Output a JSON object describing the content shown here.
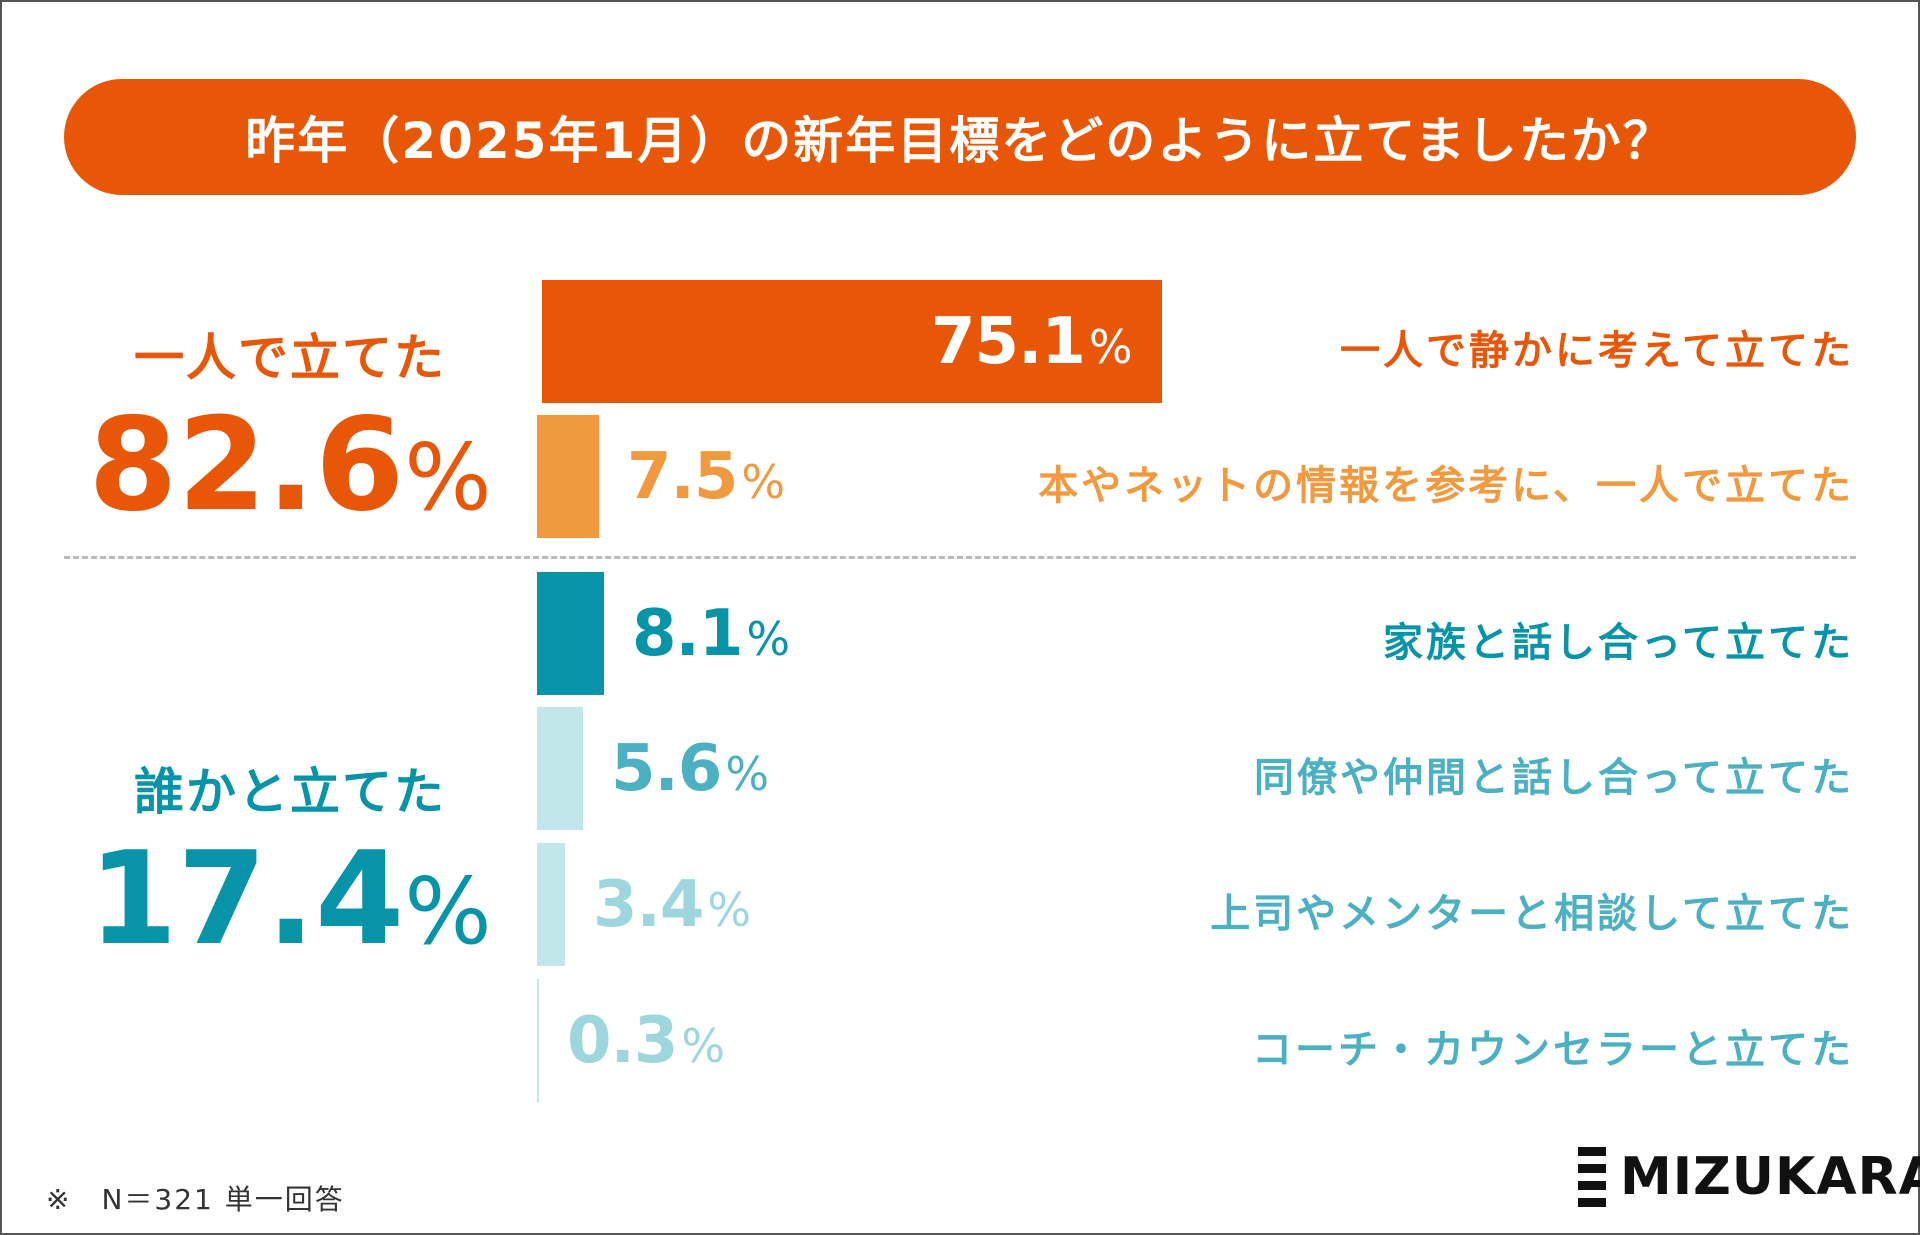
{
  "colors": {
    "title_bg": "#E85708",
    "solo_dark": "#E85708",
    "solo_light": "#F1993E",
    "group_dark": "#0894A8",
    "group_text": "#4BB1C2",
    "group_bar_light": "#C2E7EA",
    "group_val_light": "#9ED6DD"
  },
  "title": "昨年（2025年1月）の新年目標をどのように立てましたか？",
  "groups": [
    {
      "name": "一人で立てた",
      "value": "82.6",
      "unit": "%"
    },
    {
      "name": "誰かと立てた",
      "value": "17.4",
      "unit": "%"
    }
  ],
  "chart_data": {
    "type": "bar",
    "orientation": "horizontal",
    "title": "昨年（2025年1月）の新年目標をどのように立てましたか？",
    "unit": "%",
    "xlim": [
      0,
      75.1
    ],
    "categories": [
      "一人で静かに考えて立てた",
      "本やネットの情報を参考に、一人で立てた",
      "家族と話し合って立てた",
      "同僚や仲間と話し合って立てた",
      "上司やメンターと相談して立てた",
      "コーチ・カウンセラーと立てた"
    ],
    "values": [
      75.1,
      7.5,
      8.1,
      5.6,
      3.4,
      0.3
    ],
    "value_labels": [
      "75.1",
      "7.5",
      "8.1",
      "5.6",
      "3.4",
      "0.3"
    ],
    "groups": [
      {
        "name": "一人で立てた",
        "total": 82.6,
        "members": [
          0,
          1
        ]
      },
      {
        "name": "誰かと立てた",
        "total": 17.4,
        "members": [
          2,
          3,
          4,
          5
        ]
      }
    ]
  },
  "footnote": "※　N＝321 単一回答",
  "logo": {
    "text": "MIZUKARA",
    "icon": "stacked-bars-logo-icon"
  }
}
